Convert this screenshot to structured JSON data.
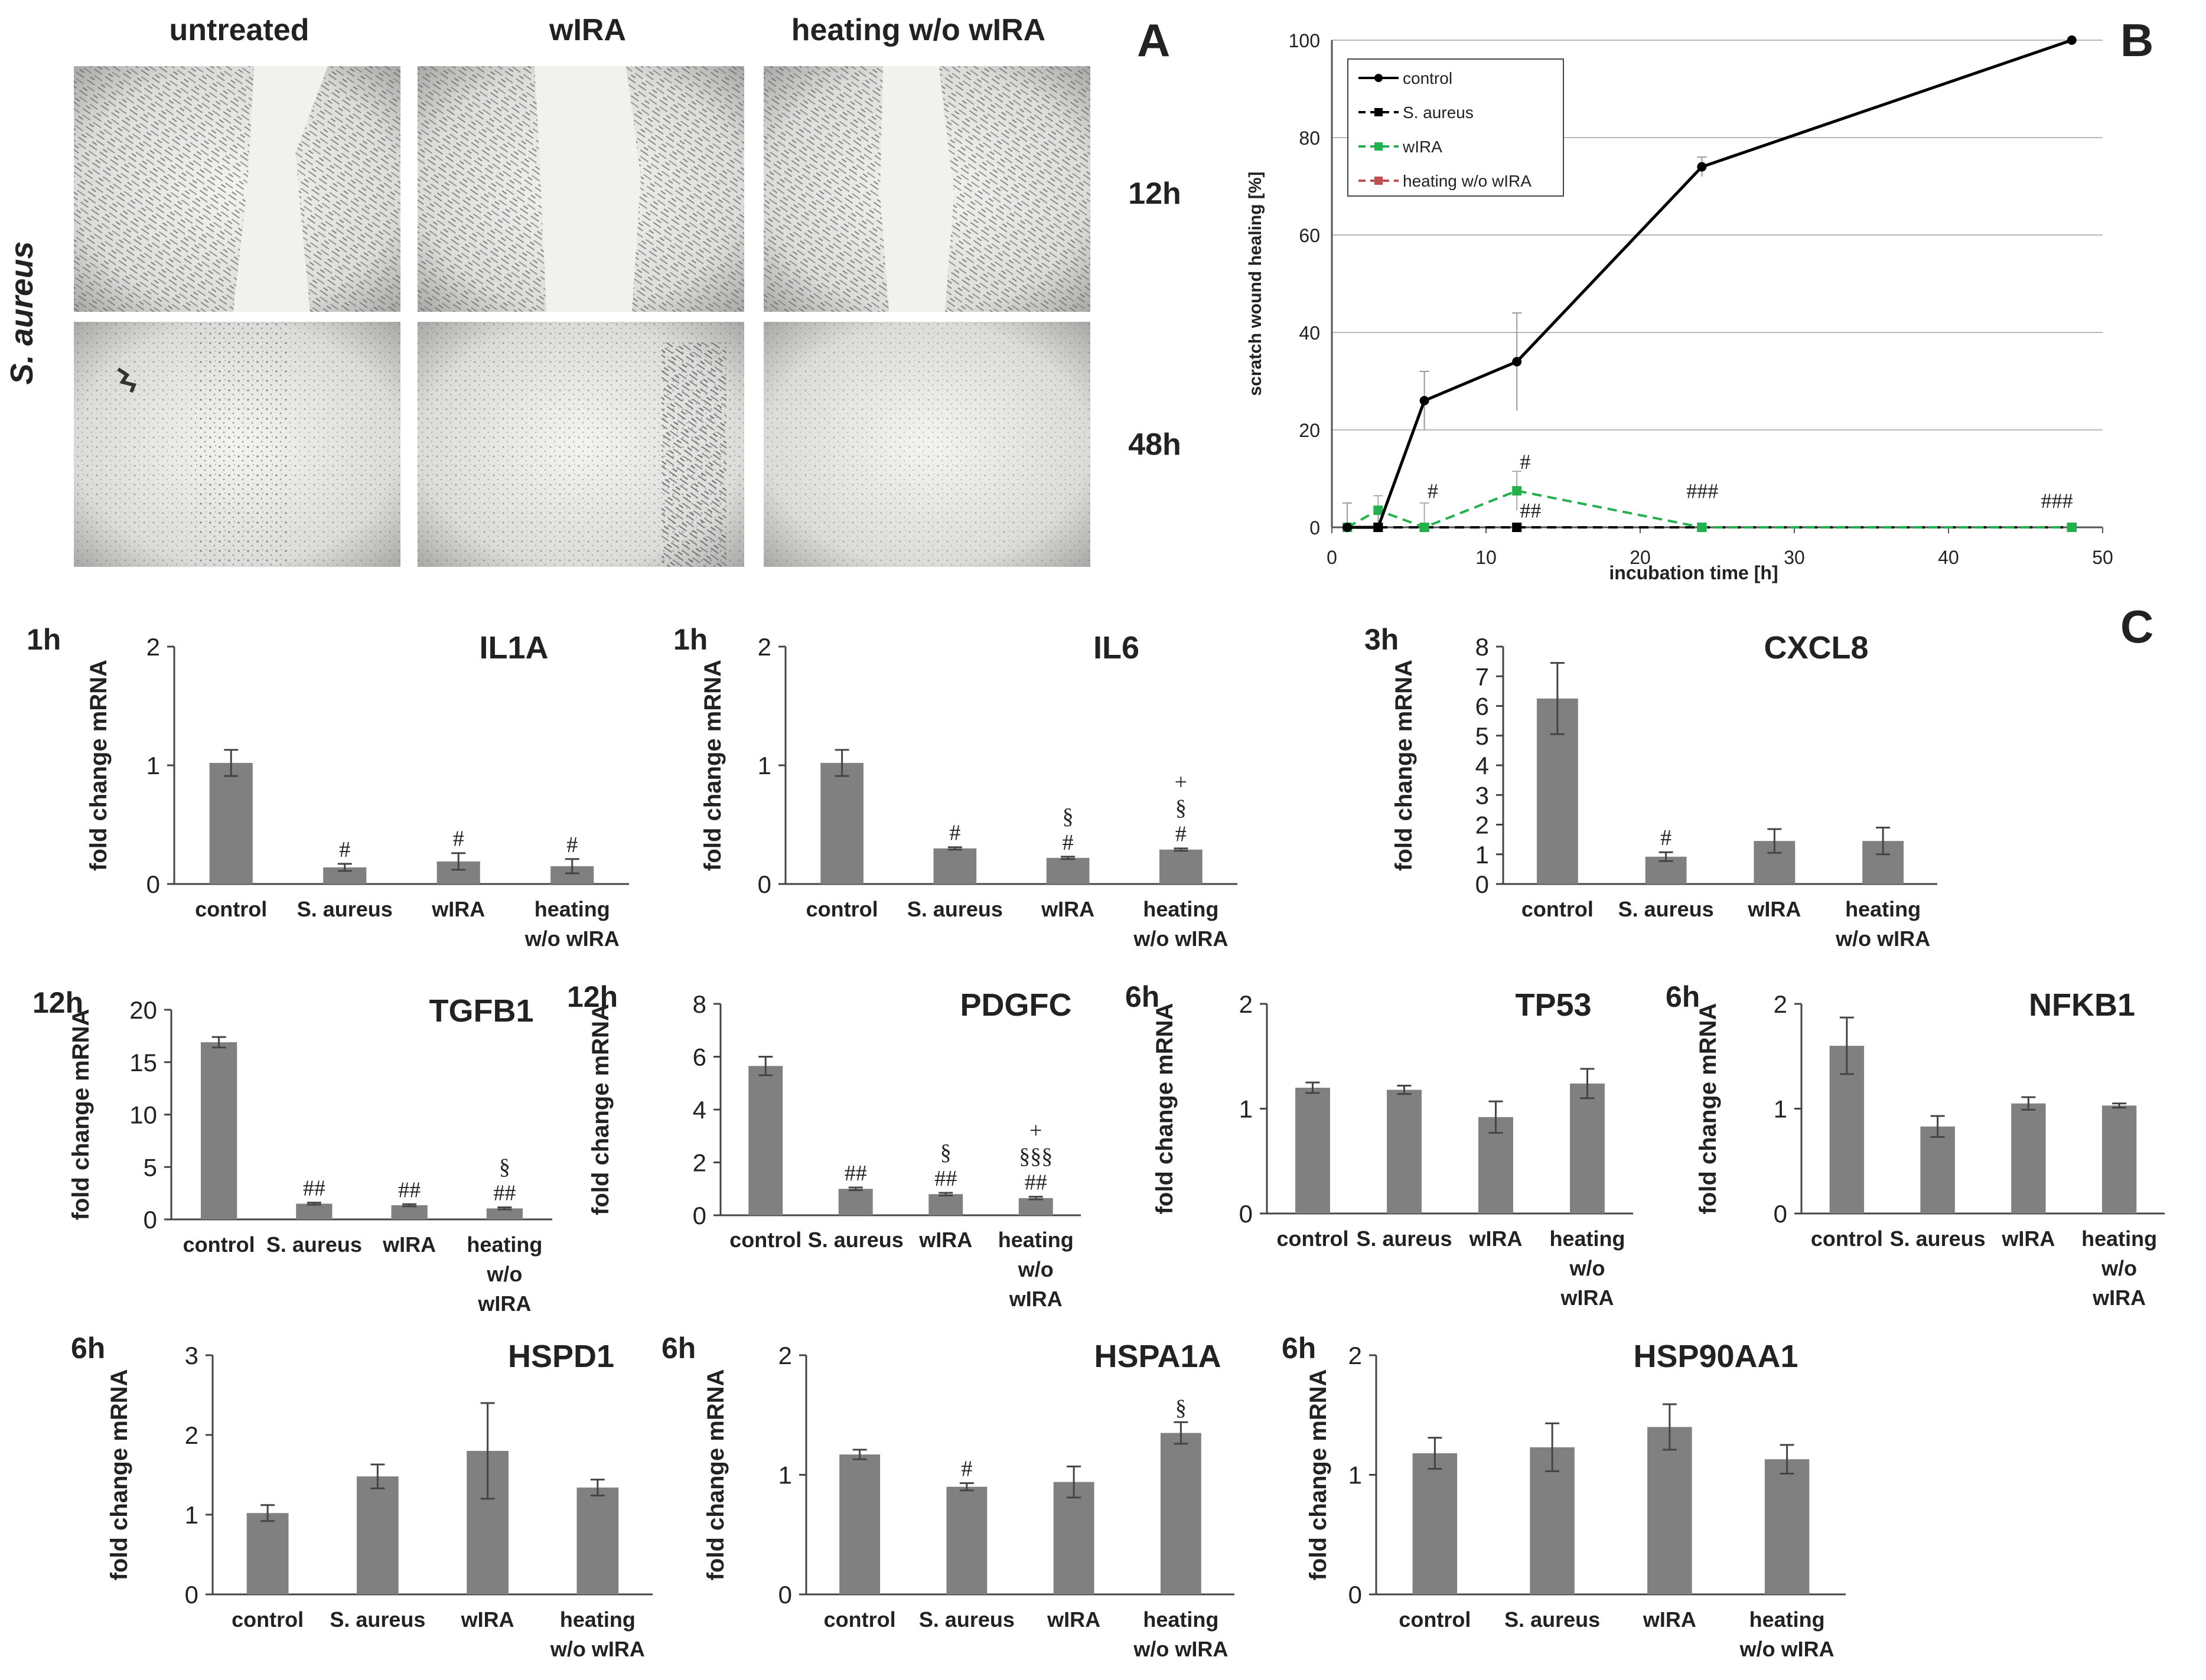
{
  "panel_labels": {
    "a": "A",
    "b": "B",
    "c": "C"
  },
  "micrographs": {
    "columns": [
      "untreated",
      "wIRA",
      "heating w/o wIRA"
    ],
    "rows": [
      "12h",
      "48h"
    ],
    "row_group": "S. aureus"
  },
  "chart_data": [
    {
      "type": "line",
      "title": "",
      "xlabel": "incubation time [h]",
      "ylabel": "scratch wound healing [%]",
      "xlim": [
        0,
        50
      ],
      "ylim": [
        0,
        100
      ],
      "xticks": [
        0,
        10,
        20,
        30,
        40,
        50
      ],
      "yticks": [
        0,
        20,
        40,
        60,
        80,
        100
      ],
      "grid": true,
      "legend_position": "top-left",
      "series": [
        {
          "name": "control",
          "color": "#000000",
          "dash": false,
          "marker": "circle",
          "x": [
            1,
            3,
            6,
            12,
            24,
            48
          ],
          "y": [
            0,
            0,
            26,
            34,
            74,
            100
          ],
          "err": [
            5,
            3,
            6,
            10,
            2,
            0
          ]
        },
        {
          "name": "S. aureus",
          "color": "#000000",
          "dash": true,
          "marker": "square",
          "x": [
            1,
            3,
            6,
            12,
            24,
            48
          ],
          "y": [
            0,
            0,
            0,
            0,
            0,
            0
          ],
          "err": [
            0,
            0,
            0,
            0,
            0,
            0
          ]
        },
        {
          "name": "wIRA",
          "color": "#22b14c",
          "dash": true,
          "marker": "square",
          "x": [
            1,
            3,
            6,
            12,
            24,
            48
          ],
          "y": [
            0,
            3.5,
            0,
            7.5,
            0,
            0
          ],
          "err": [
            0,
            3,
            5,
            4,
            0,
            0
          ]
        },
        {
          "name": "heating w/o wIRA",
          "color": "#c0504d",
          "dash": true,
          "marker": "square",
          "x": [
            1,
            3,
            6,
            12,
            24,
            48
          ],
          "y": [
            0,
            0,
            0,
            0,
            0,
            0
          ],
          "err": [
            0,
            0,
            0,
            0,
            0,
            0
          ]
        }
      ],
      "annotations": [
        {
          "text": "#",
          "x": 6.2,
          "y": 6
        },
        {
          "text": "#",
          "x": 12.2,
          "y": 12
        },
        {
          "text": "##",
          "x": 12.2,
          "y": 2
        },
        {
          "text": "###",
          "x": 23,
          "y": 6
        },
        {
          "text": "###",
          "x": 46,
          "y": 4
        }
      ]
    },
    {
      "type": "bar",
      "time": "1h",
      "title": "IL1A",
      "ylabel": "fold change mRNA",
      "ylim": [
        0,
        2
      ],
      "yticks": [
        0,
        1,
        2
      ],
      "categories": [
        "control",
        "S. aureus",
        "wIRA",
        "heating w/o wIRA"
      ],
      "values": [
        1.02,
        0.14,
        0.19,
        0.15
      ],
      "err": [
        0.11,
        0.03,
        0.07,
        0.06
      ],
      "marks": [
        [],
        [
          "#"
        ],
        [
          "#"
        ],
        [
          "#"
        ]
      ]
    },
    {
      "type": "bar",
      "time": "1h",
      "title": "IL6",
      "ylabel": "fold change mRNA",
      "ylim": [
        0,
        2
      ],
      "yticks": [
        0,
        1,
        2
      ],
      "categories": [
        "control",
        "S. aureus",
        "wIRA",
        "heating w/o wIRA"
      ],
      "values": [
        1.02,
        0.3,
        0.22,
        0.29
      ],
      "err": [
        0.11,
        0.01,
        0.01,
        0.01
      ],
      "marks": [
        [],
        [
          "#"
        ],
        [
          "#",
          "§"
        ],
        [
          "#",
          "§",
          "+"
        ]
      ]
    },
    {
      "type": "bar",
      "time": "3h",
      "title": "CXCL8",
      "ylabel": "fold change mRNA",
      "ylim": [
        0,
        8
      ],
      "yticks": [
        0,
        1,
        2,
        3,
        4,
        5,
        6,
        7,
        8
      ],
      "categories": [
        "control",
        "S. aureus",
        "wIRA",
        "heating w/o wIRA"
      ],
      "values": [
        6.25,
        0.92,
        1.45,
        1.45
      ],
      "err": [
        1.2,
        0.15,
        0.4,
        0.45
      ],
      "marks": [
        [],
        [
          "#"
        ],
        [],
        []
      ]
    },
    {
      "type": "bar",
      "time": "12h",
      "title": "TGFB1",
      "ylabel": "fold change mRNA",
      "ylim": [
        0,
        20
      ],
      "yticks": [
        0,
        5,
        10,
        15,
        20
      ],
      "categories": [
        "control",
        "S. aureus",
        "wIRA",
        "heating w/o wIRA"
      ],
      "values": [
        16.9,
        1.5,
        1.35,
        1.05
      ],
      "err": [
        0.5,
        0.1,
        0.1,
        0.1
      ],
      "marks": [
        [],
        [
          "##"
        ],
        [
          "##"
        ],
        [
          "##",
          "§"
        ]
      ]
    },
    {
      "type": "bar",
      "time": "12h",
      "title": "PDGFC",
      "ylabel": "fold change mRNA",
      "ylim": [
        0,
        8
      ],
      "yticks": [
        0,
        2,
        4,
        6,
        8
      ],
      "categories": [
        "control",
        "S. aureus",
        "wIRA",
        "heating w/o wIRA"
      ],
      "values": [
        5.65,
        1.0,
        0.8,
        0.65
      ],
      "err": [
        0.35,
        0.05,
        0.05,
        0.05
      ],
      "marks": [
        [],
        [
          "##"
        ],
        [
          "##",
          "§"
        ],
        [
          "##",
          "§§§",
          "+"
        ]
      ]
    },
    {
      "type": "bar",
      "time": "6h",
      "title": "TP53",
      "ylabel": "fold change mRNA",
      "ylim": [
        0,
        2
      ],
      "yticks": [
        0,
        1,
        2
      ],
      "categories": [
        "control",
        "S. aureus",
        "wIRA",
        "heating w/o wIRA"
      ],
      "values": [
        1.2,
        1.18,
        0.92,
        1.24
      ],
      "err": [
        0.05,
        0.04,
        0.15,
        0.14
      ],
      "marks": [
        [],
        [],
        [],
        []
      ]
    },
    {
      "type": "bar",
      "time": "6h",
      "title": "NFKB1",
      "ylabel": "fold change mRNA",
      "ylim": [
        0,
        2
      ],
      "yticks": [
        0,
        1,
        2
      ],
      "categories": [
        "control",
        "S. aureus",
        "wIRA",
        "heating w/o wIRA"
      ],
      "values": [
        1.6,
        0.83,
        1.05,
        1.03
      ],
      "err": [
        0.27,
        0.1,
        0.06,
        0.02
      ],
      "marks": [
        [],
        [],
        [],
        []
      ]
    },
    {
      "type": "bar",
      "time": "6h",
      "title": "HSPD1",
      "ylabel": "fold change mRNA",
      "ylim": [
        0,
        3
      ],
      "yticks": [
        0,
        1,
        2,
        3
      ],
      "categories": [
        "control",
        "S. aureus",
        "wIRA",
        "heating w/o wIRA"
      ],
      "values": [
        1.02,
        1.48,
        1.8,
        1.34
      ],
      "err": [
        0.1,
        0.15,
        0.6,
        0.1
      ],
      "marks": [
        [],
        [],
        [],
        []
      ]
    },
    {
      "type": "bar",
      "time": "6h",
      "title": "HSPA1A",
      "ylabel": "fold change mRNA",
      "ylim": [
        0,
        2
      ],
      "yticks": [
        0,
        1,
        2
      ],
      "categories": [
        "control",
        "S. aureus",
        "wIRA",
        "heating w/o wIRA"
      ],
      "values": [
        1.17,
        0.9,
        0.94,
        1.35
      ],
      "err": [
        0.04,
        0.03,
        0.13,
        0.09
      ],
      "marks": [
        [],
        [
          "#"
        ],
        [],
        [
          "§"
        ]
      ]
    },
    {
      "type": "bar",
      "time": "6h",
      "title": "HSP90AA1",
      "ylabel": "fold change mRNA",
      "ylim": [
        0,
        2
      ],
      "yticks": [
        0,
        1,
        2
      ],
      "categories": [
        "control",
        "S. aureus",
        "wIRA",
        "heating w/o wIRA"
      ],
      "values": [
        1.18,
        1.23,
        1.4,
        1.13
      ],
      "err": [
        0.13,
        0.2,
        0.19,
        0.12
      ],
      "marks": [
        [],
        [],
        [],
        []
      ]
    }
  ]
}
